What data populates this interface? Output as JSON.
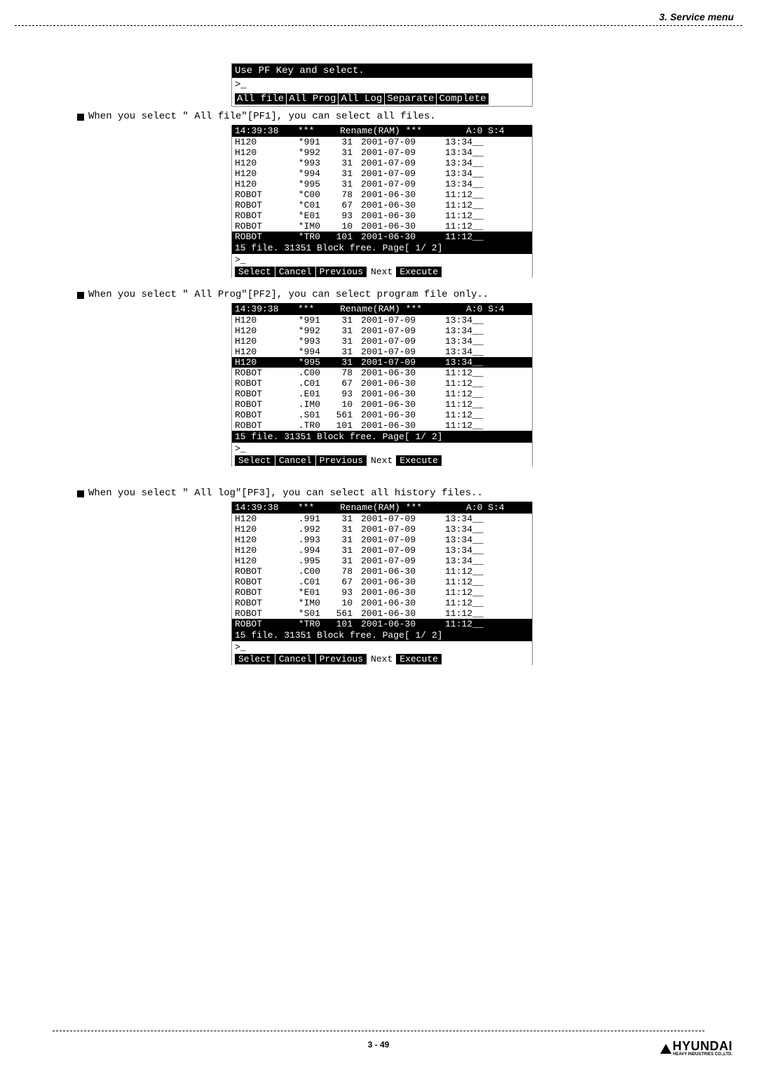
{
  "header": {
    "title": "3. Service menu"
  },
  "pfPanel": {
    "line1": "Use PF Key and select.",
    "prompt": ">_",
    "buttons": [
      "All file",
      "All Prog",
      "All Log",
      "Separate",
      "Complete"
    ]
  },
  "note1": {
    "prefix": "When you select ",
    "quoted": "\" All file\"[PF1], you can select all files."
  },
  "note2": {
    "prefix": "When you select ",
    "quoted": "\" All Prog\"[PF2], you can select program file only.."
  },
  "note3": {
    "prefix": "When you select ",
    "quoted": "\" All log\"[PF3], you can select all history files.."
  },
  "tableHeader": {
    "time": "14:39:38",
    "stars": "***",
    "title": "Rename(RAM)",
    "stars2": "***",
    "suffix": "A:0  S:4"
  },
  "table1": {
    "rows": [
      {
        "c1": "H120",
        "c2": "*991",
        "c3": "31",
        "c4": "2001-07-09",
        "c5": "13:34__",
        "sel": false
      },
      {
        "c1": "H120",
        "c2": "*992",
        "c3": "31",
        "c4": "2001-07-09",
        "c5": "13:34__",
        "sel": false
      },
      {
        "c1": "H120",
        "c2": "*993",
        "c3": "31",
        "c4": "2001-07-09",
        "c5": "13:34__",
        "sel": false
      },
      {
        "c1": "H120",
        "c2": "*994",
        "c3": "31",
        "c4": "2001-07-09",
        "c5": "13:34__",
        "sel": false
      },
      {
        "c1": "H120",
        "c2": "*995",
        "c3": "31",
        "c4": "2001-07-09",
        "c5": "13:34__",
        "sel": false
      },
      {
        "c1": "ROBOT",
        "c2": "*C00",
        "c3": "78",
        "c4": "2001-06-30",
        "c5": "11:12__",
        "sel": false
      },
      {
        "c1": "ROBOT",
        "c2": "*C01",
        "c3": "67",
        "c4": "2001-06-30",
        "c5": "11:12__",
        "sel": false
      },
      {
        "c1": "ROBOT",
        "c2": "*E01",
        "c3": "93",
        "c4": "2001-06-30",
        "c5": "11:12__",
        "sel": false
      },
      {
        "c1": "ROBOT",
        "c2": "*IM0",
        "c3": "10",
        "c4": "2001-06-30",
        "c5": "11:12__",
        "sel": false
      },
      {
        "c1": "ROBOT",
        "c2": "*TR0",
        "c3": "101",
        "c4": "2001-06-30",
        "c5": "11:12__",
        "sel": true
      }
    ]
  },
  "table2": {
    "rows": [
      {
        "c1": "H120",
        "c2": "*991",
        "c3": "31",
        "c4": "2001-07-09",
        "c5": "13:34__",
        "sel": false
      },
      {
        "c1": "H120",
        "c2": "*992",
        "c3": "31",
        "c4": "2001-07-09",
        "c5": "13:34__",
        "sel": false
      },
      {
        "c1": "H120",
        "c2": "*993",
        "c3": "31",
        "c4": "2001-07-09",
        "c5": "13:34__",
        "sel": false
      },
      {
        "c1": "H120",
        "c2": "*994",
        "c3": "31",
        "c4": "2001-07-09",
        "c5": "13:34__",
        "sel": false
      },
      {
        "c1": "H120",
        "c2": "*995",
        "c3": "31",
        "c4": "2001-07-09",
        "c5": "13:34__",
        "sel": true
      },
      {
        "c1": "ROBOT",
        "c2": ".C00",
        "c3": "78",
        "c4": "2001-06-30",
        "c5": "11:12__",
        "sel": false
      },
      {
        "c1": "ROBOT",
        "c2": ".C01",
        "c3": "67",
        "c4": "2001-06-30",
        "c5": "11:12__",
        "sel": false
      },
      {
        "c1": "ROBOT",
        "c2": ".E01",
        "c3": "93",
        "c4": "2001-06-30",
        "c5": "11:12__",
        "sel": false
      },
      {
        "c1": "ROBOT",
        "c2": ".IM0",
        "c3": "10",
        "c4": "2001-06-30",
        "c5": "11:12__",
        "sel": false
      },
      {
        "c1": "ROBOT",
        "c2": ".S01",
        "c3": "561",
        "c4": "2001-06-30",
        "c5": "11:12__",
        "sel": false
      },
      {
        "c1": "ROBOT",
        "c2": ".TR0",
        "c3": "101",
        "c4": "2001-06-30",
        "c5": "11:12__",
        "sel": false
      }
    ]
  },
  "table3": {
    "rows": [
      {
        "c1": "H120",
        "c2": ".991",
        "c3": "31",
        "c4": "2001-07-09",
        "c5": "13:34__",
        "sel": false
      },
      {
        "c1": "H120",
        "c2": ".992",
        "c3": "31",
        "c4": "2001-07-09",
        "c5": "13:34__",
        "sel": false
      },
      {
        "c1": "H120",
        "c2": ".993",
        "c3": "31",
        "c4": "2001-07-09",
        "c5": "13:34__",
        "sel": false
      },
      {
        "c1": "H120",
        "c2": ".994",
        "c3": "31",
        "c4": "2001-07-09",
        "c5": "13:34__",
        "sel": false
      },
      {
        "c1": "H120",
        "c2": ".995",
        "c3": "31",
        "c4": "2001-07-09",
        "c5": "13:34__",
        "sel": false
      },
      {
        "c1": "ROBOT",
        "c2": ".C00",
        "c3": "78",
        "c4": "2001-06-30",
        "c5": "11:12__",
        "sel": false
      },
      {
        "c1": "ROBOT",
        "c2": ".C01",
        "c3": "67",
        "c4": "2001-06-30",
        "c5": "11:12__",
        "sel": false
      },
      {
        "c1": "ROBOT",
        "c2": "*E01",
        "c3": "93",
        "c4": "2001-06-30",
        "c5": "11:12__",
        "sel": false
      },
      {
        "c1": "ROBOT",
        "c2": "*IM0",
        "c3": "10",
        "c4": "2001-06-30",
        "c5": "11:12__",
        "sel": false
      },
      {
        "c1": "ROBOT",
        "c2": "*S01",
        "c3": "561",
        "c4": "2001-06-30",
        "c5": "11:12__",
        "sel": false
      },
      {
        "c1": "ROBOT",
        "c2": "*TR0",
        "c3": "101",
        "c4": "2001-06-30",
        "c5": "11:12__",
        "sel": true
      }
    ]
  },
  "tableFooter": {
    "status": "15 file. 31351 Block free. Page[  1/  2]",
    "prompt": ">_",
    "buttons": [
      "Select",
      "Cancel",
      "Previous",
      "Next",
      "Execute"
    ],
    "btnPrevAlt": "Previous"
  },
  "pageNum": "3 - 49",
  "logo": {
    "main": "HYUNDAI",
    "sub": "HEAVY INDUSTRIES CO.,LTD."
  }
}
